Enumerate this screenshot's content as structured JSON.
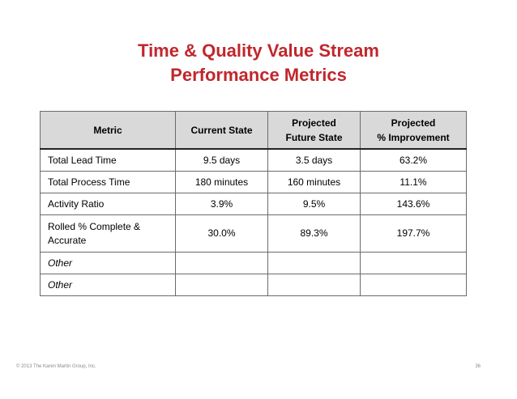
{
  "title": {
    "line1": "Time & Quality Value Stream",
    "line2": "Performance Metrics",
    "color": "#c0272d"
  },
  "table": {
    "headers": {
      "metric": "Metric",
      "current": "Current State",
      "future_line1": "Projected",
      "future_line2": "Future State",
      "improvement_line1": "Projected",
      "improvement_line2": "% Improvement"
    },
    "rows": [
      {
        "metric": "Total Lead Time",
        "current": "9.5 days",
        "future": "3.5 days",
        "improvement": "63.2%"
      },
      {
        "metric": "Total Process Time",
        "current": "180 minutes",
        "future": "160 minutes",
        "improvement": "11.1%"
      },
      {
        "metric": "Activity Ratio",
        "current": "3.9%",
        "future": "9.5%",
        "improvement": "143.6%"
      },
      {
        "metric_line1": "Rolled % Complete &",
        "metric_line2": "Accurate",
        "current": "30.0%",
        "future": "89.3%",
        "improvement": "197.7%"
      },
      {
        "metric": "Other",
        "current": "",
        "future": "",
        "improvement": ""
      },
      {
        "metric": "Other",
        "current": "",
        "future": "",
        "improvement": ""
      }
    ]
  },
  "footer": {
    "copyright": "© 2013 The Karen Martin Group, Inc.",
    "page_number": "36"
  }
}
